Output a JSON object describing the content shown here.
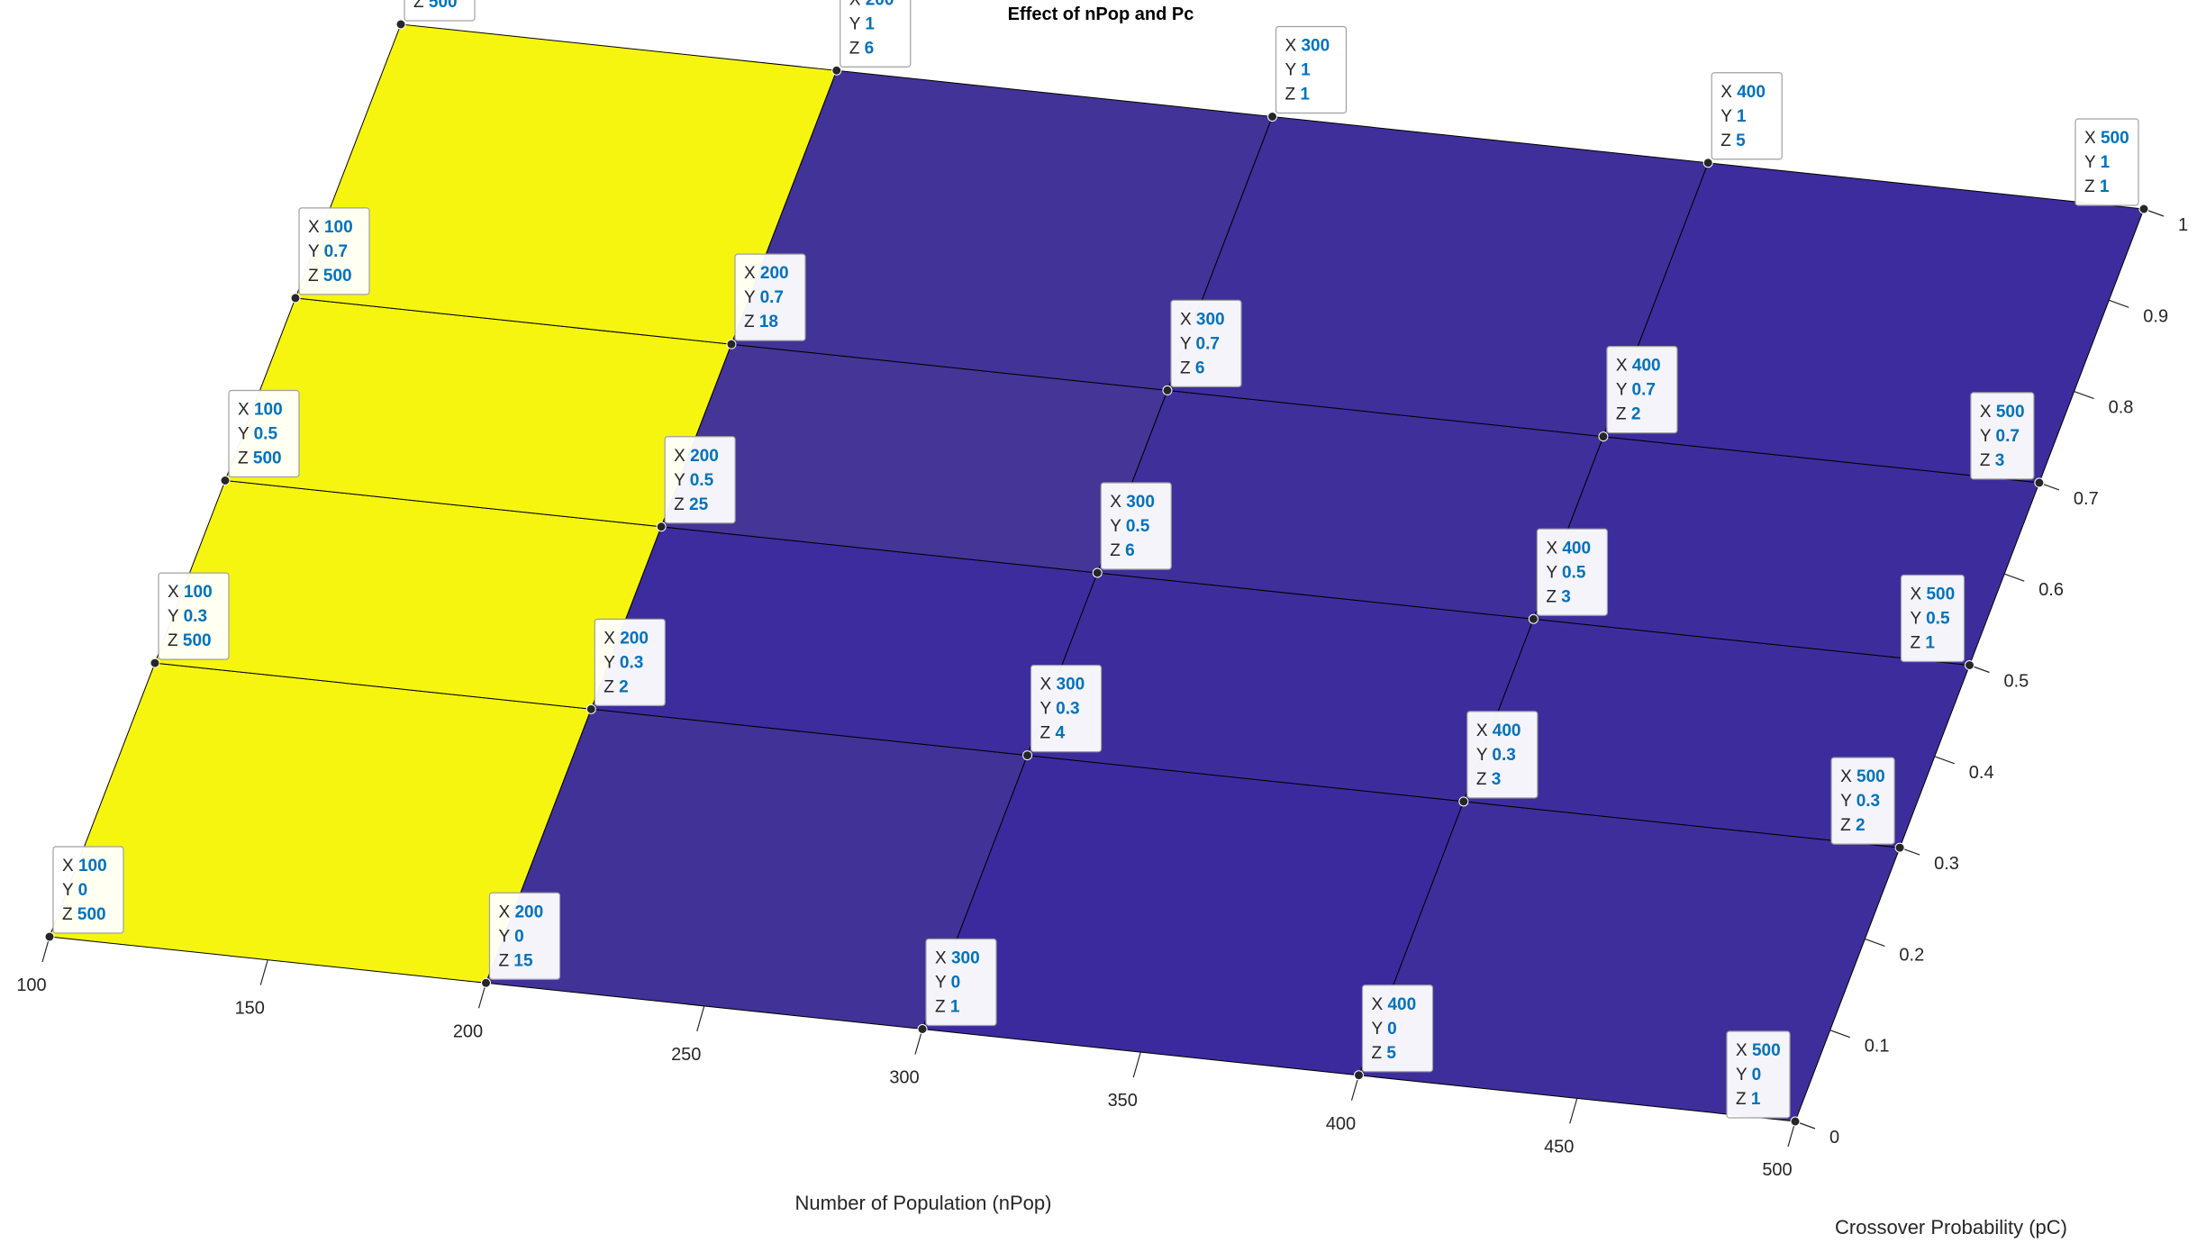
{
  "chart_data": {
    "type": "surface",
    "title": "Effect of nPop and Pc",
    "xlabel": "Number of Population (nPop)",
    "ylabel": "Crossover Probability (pC)",
    "x": [
      100,
      200,
      300,
      400,
      500
    ],
    "y": [
      0,
      0.3,
      0.5,
      0.7,
      1
    ],
    "z": [
      [
        500,
        15,
        1,
        5,
        1
      ],
      [
        500,
        2,
        4,
        3,
        2
      ],
      [
        500,
        25,
        6,
        3,
        1
      ],
      [
        500,
        18,
        6,
        2,
        3
      ],
      [
        500,
        6,
        1,
        5,
        1
      ]
    ],
    "x_ticks": [
      "100",
      "150",
      "200",
      "250",
      "300",
      "350",
      "400",
      "450",
      "500"
    ],
    "y_ticks": [
      "0",
      "0.1",
      "0.2",
      "0.3",
      "0.4",
      "0.5",
      "0.6",
      "0.7",
      "0.8",
      "0.9",
      "1"
    ],
    "xlim": [
      100,
      500
    ],
    "ylim": [
      0,
      1
    ],
    "datatip_labels": {
      "x": "X",
      "y": "Y",
      "z": "Z"
    },
    "colors": {
      "high": "#f5f510",
      "low": "#3a2a9e",
      "mid": "#3d30c4",
      "datatip_value": "#0072bd",
      "edge": "#000000"
    }
  }
}
